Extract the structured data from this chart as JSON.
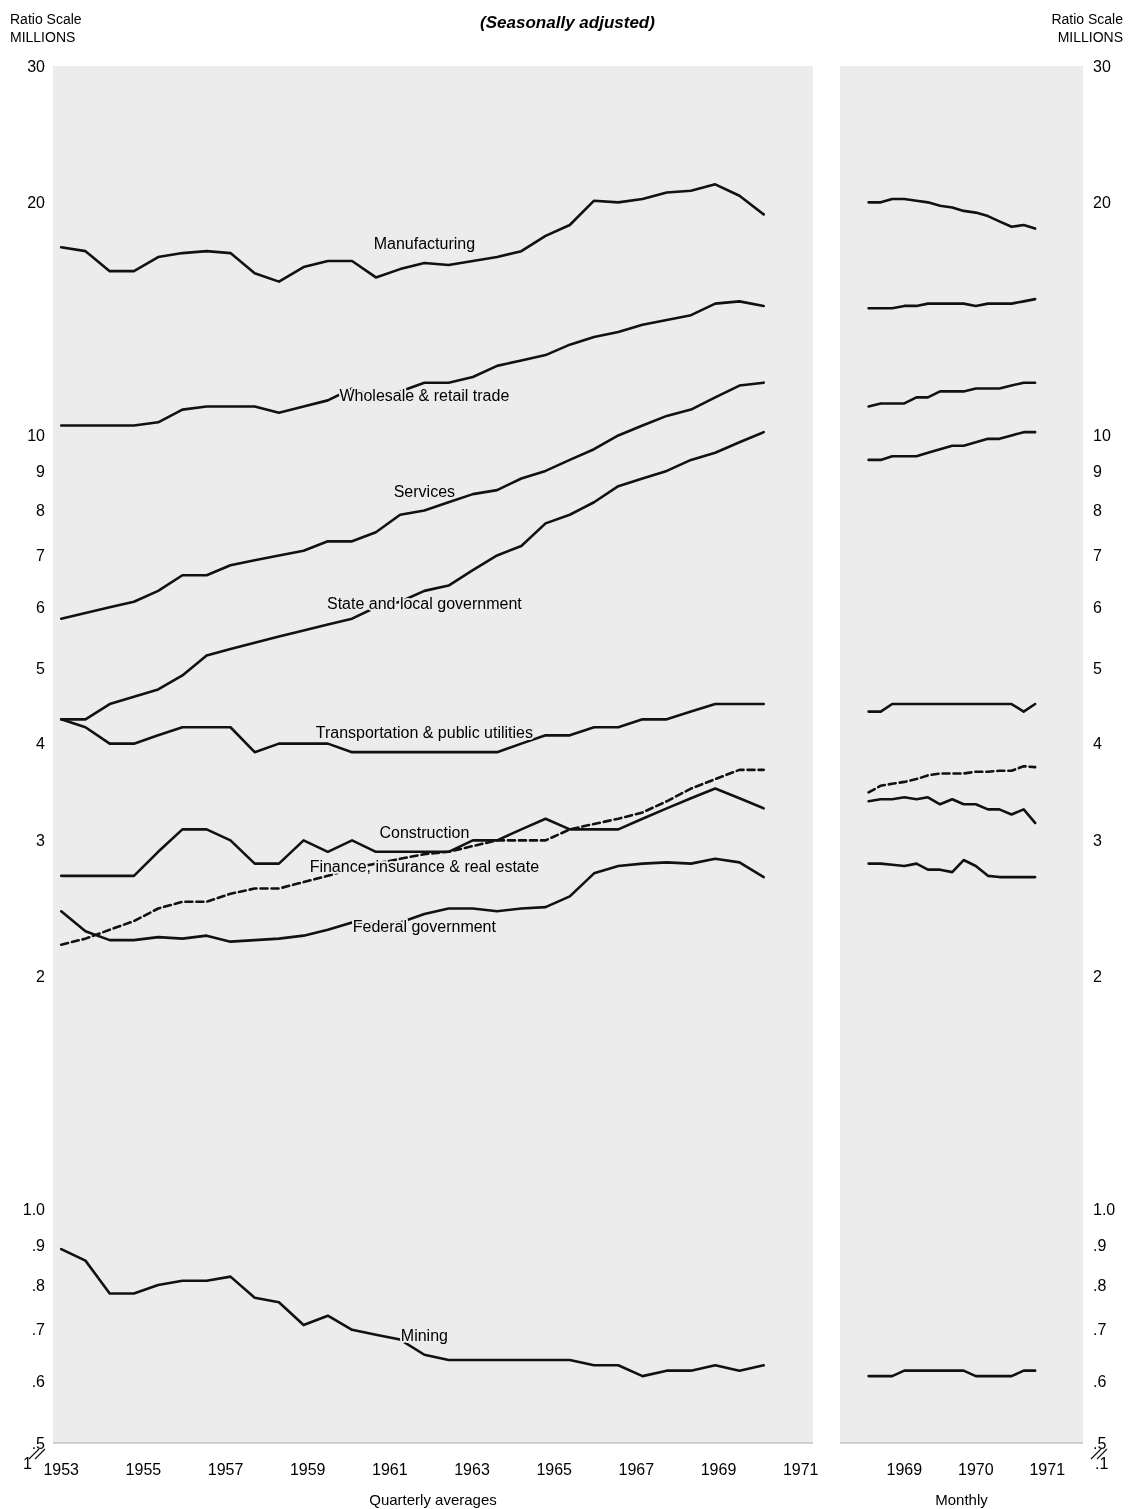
{
  "chart_data": [
    {
      "type": "line",
      "title": "(Seasonally adjusted)",
      "ylabel": "Ratio Scale\nMILLIONS",
      "xlabel": "Quarterly averages",
      "log": true,
      "xlim": [
        1952.8,
        1971.3
      ],
      "xticks": [
        1953,
        1955,
        1957,
        1959,
        1961,
        1963,
        1965,
        1967,
        1969,
        1971
      ],
      "ylim": [
        0.5,
        30
      ],
      "yticks": [
        30,
        20,
        10,
        9,
        8,
        7,
        6,
        5,
        4,
        3,
        2,
        {
          "value": 1,
          "label": "1.0"
        },
        {
          "value": 0.9,
          "label": ".9"
        },
        {
          "value": 0.8,
          "label": ".8"
        },
        {
          "value": 0.7,
          "label": ".7"
        },
        {
          "value": 0.6,
          "label": ".6"
        },
        {
          "value": 0.5,
          "label": ".5"
        }
      ],
      "x": [
        1953.0,
        1953.59,
        1954.18,
        1954.77,
        1955.36,
        1955.95,
        1956.54,
        1957.12,
        1957.71,
        1958.3,
        1958.9,
        1959.49,
        1960.08,
        1960.66,
        1961.25,
        1961.84,
        1962.43,
        1963.02,
        1963.61,
        1964.2,
        1964.79,
        1965.38,
        1965.97,
        1966.56,
        1967.15,
        1967.74,
        1968.33,
        1968.92,
        1969.51,
        1970.1
      ],
      "series": [
        {
          "name": "Manufacturing",
          "color": "#111111",
          "values": [
            17.5,
            17.3,
            16.3,
            16.3,
            17.0,
            17.2,
            17.3,
            17.2,
            16.2,
            15.8,
            16.5,
            16.8,
            16.8,
            16.0,
            16.4,
            16.7,
            16.6,
            16.8,
            17.0,
            17.3,
            18.1,
            18.7,
            20.1,
            20.0,
            20.2,
            20.6,
            20.7,
            21.1,
            20.4,
            19.3
          ]
        },
        {
          "name": "Wholesale & retail trade",
          "color": "#111111",
          "values": [
            10.3,
            10.3,
            10.3,
            10.3,
            10.4,
            10.8,
            10.9,
            10.9,
            10.9,
            10.7,
            10.9,
            11.1,
            11.5,
            11.2,
            11.4,
            11.7,
            11.7,
            11.9,
            12.3,
            12.5,
            12.7,
            13.1,
            13.4,
            13.6,
            13.9,
            14.1,
            14.3,
            14.8,
            14.9,
            14.7
          ]
        },
        {
          "name": "Services",
          "color": "#111111",
          "values": [
            5.8,
            5.9,
            6.0,
            6.1,
            6.3,
            6.6,
            6.6,
            6.8,
            6.9,
            7.0,
            7.1,
            7.3,
            7.3,
            7.5,
            7.9,
            8.0,
            8.2,
            8.4,
            8.5,
            8.8,
            9.0,
            9.3,
            9.6,
            10.0,
            10.3,
            10.6,
            10.8,
            11.2,
            11.6,
            11.7
          ]
        },
        {
          "name": "State and local government",
          "color": "#111111",
          "values": [
            4.3,
            4.3,
            4.5,
            4.6,
            4.7,
            4.9,
            5.2,
            5.3,
            5.4,
            5.5,
            5.6,
            5.7,
            5.8,
            6.0,
            6.1,
            6.3,
            6.4,
            6.7,
            7.0,
            7.2,
            7.7,
            7.9,
            8.2,
            8.6,
            8.8,
            9.0,
            9.3,
            9.5,
            9.8,
            10.1
          ]
        },
        {
          "name": "Transportation & public utilities",
          "color": "#111111",
          "values": [
            4.3,
            4.2,
            4.0,
            4.0,
            4.1,
            4.2,
            4.2,
            4.2,
            3.9,
            4.0,
            4.0,
            4.0,
            3.9,
            3.9,
            3.9,
            3.9,
            3.9,
            3.9,
            3.9,
            4.0,
            4.1,
            4.1,
            4.2,
            4.2,
            4.3,
            4.3,
            4.4,
            4.5,
            4.5,
            4.5
          ]
        },
        {
          "name": "Construction",
          "color": "#111111",
          "values": [
            2.7,
            2.7,
            2.7,
            2.7,
            2.9,
            3.1,
            3.1,
            3.0,
            2.8,
            2.8,
            3.0,
            2.9,
            3.0,
            2.9,
            2.9,
            2.9,
            2.9,
            3.0,
            3.0,
            3.1,
            3.2,
            3.1,
            3.1,
            3.1,
            3.2,
            3.3,
            3.4,
            3.5,
            3.4,
            3.3
          ]
        },
        {
          "name": "Finance, insurance & real estate",
          "color": "#111111",
          "line_style": "dashed",
          "values": [
            2.2,
            2.24,
            2.3,
            2.36,
            2.45,
            2.5,
            2.5,
            2.56,
            2.6,
            2.6,
            2.65,
            2.7,
            2.76,
            2.8,
            2.84,
            2.88,
            2.9,
            2.95,
            3.0,
            3.0,
            3.0,
            3.1,
            3.15,
            3.2,
            3.26,
            3.37,
            3.5,
            3.6,
            3.7,
            3.7
          ]
        },
        {
          "name": "Federal government",
          "color": "#111111",
          "values": [
            2.43,
            2.29,
            2.23,
            2.23,
            2.25,
            2.24,
            2.26,
            2.22,
            2.23,
            2.24,
            2.26,
            2.3,
            2.35,
            2.34,
            2.35,
            2.41,
            2.45,
            2.45,
            2.43,
            2.45,
            2.46,
            2.54,
            2.72,
            2.78,
            2.8,
            2.81,
            2.8,
            2.84,
            2.81,
            2.69
          ]
        },
        {
          "name": "Mining",
          "color": "#111111",
          "values": [
            0.89,
            0.86,
            0.78,
            0.78,
            0.8,
            0.81,
            0.81,
            0.82,
            0.77,
            0.76,
            0.71,
            0.73,
            0.7,
            0.69,
            0.68,
            0.65,
            0.64,
            0.64,
            0.64,
            0.64,
            0.64,
            0.64,
            0.63,
            0.63,
            0.61,
            0.62,
            0.62,
            0.63,
            0.62,
            0.63
          ]
        }
      ],
      "annotations": [
        "1"
      ]
    },
    {
      "type": "line",
      "ylabel": "Ratio Scale\nMILLIONS",
      "xlabel": "Monthly",
      "log": true,
      "xlim": [
        1968.6,
        1972.0
      ],
      "xticks": [
        {
          "value": 1969.5,
          "label": "1969"
        },
        {
          "value": 1970.5,
          "label": "1970"
        },
        {
          "value": 1971.5,
          "label": "1971"
        }
      ],
      "ylim": [
        0.5,
        30
      ],
      "yticks": [
        30,
        20,
        10,
        9,
        8,
        7,
        6,
        5,
        4,
        3,
        2,
        {
          "value": 1,
          "label": "1.0"
        },
        {
          "value": 0.9,
          "label": ".9"
        },
        {
          "value": 0.8,
          "label": ".8"
        },
        {
          "value": 0.7,
          "label": ".7"
        },
        {
          "value": 0.6,
          "label": ".6"
        },
        {
          "value": 0.5,
          "label": ".5"
        }
      ],
      "x": [
        1969.0,
        1969.17,
        1969.33,
        1969.5,
        1969.67,
        1969.83,
        1970.0,
        1970.17,
        1970.33,
        1970.5,
        1970.67,
        1970.83,
        1971.0,
        1971.17,
        1971.33
      ],
      "series": [
        {
          "color": "#111111",
          "values": [
            20.0,
            20.0,
            20.2,
            20.2,
            20.1,
            20.0,
            19.8,
            19.7,
            19.5,
            19.4,
            19.2,
            18.9,
            18.6,
            18.7,
            18.5
          ]
        },
        {
          "color": "#111111",
          "values": [
            14.6,
            14.6,
            14.6,
            14.7,
            14.7,
            14.8,
            14.8,
            14.8,
            14.8,
            14.7,
            14.8,
            14.8,
            14.8,
            14.9,
            15.0
          ]
        },
        {
          "color": "#111111",
          "values": [
            10.9,
            11.0,
            11.0,
            11.0,
            11.2,
            11.2,
            11.4,
            11.4,
            11.4,
            11.5,
            11.5,
            11.5,
            11.6,
            11.7,
            11.7
          ]
        },
        {
          "color": "#111111",
          "values": [
            9.3,
            9.3,
            9.4,
            9.4,
            9.4,
            9.5,
            9.6,
            9.7,
            9.7,
            9.8,
            9.9,
            9.9,
            10.0,
            10.1,
            10.1
          ]
        },
        {
          "color": "#111111",
          "values": [
            4.4,
            4.4,
            4.5,
            4.5,
            4.5,
            4.5,
            4.5,
            4.5,
            4.5,
            4.5,
            4.5,
            4.5,
            4.5,
            4.4,
            4.5
          ]
        },
        {
          "color": "#111111",
          "line_style": "dashed",
          "values": [
            3.46,
            3.53,
            3.55,
            3.57,
            3.6,
            3.64,
            3.66,
            3.66,
            3.66,
            3.68,
            3.68,
            3.69,
            3.69,
            3.74,
            3.73
          ]
        },
        {
          "color": "#111111",
          "values": [
            3.37,
            3.39,
            3.39,
            3.41,
            3.39,
            3.41,
            3.34,
            3.39,
            3.34,
            3.34,
            3.29,
            3.29,
            3.24,
            3.29,
            3.16
          ]
        },
        {
          "color": "#111111",
          "values": [
            2.8,
            2.8,
            2.79,
            2.78,
            2.8,
            2.75,
            2.75,
            2.73,
            2.83,
            2.78,
            2.7,
            2.69,
            2.69,
            2.69,
            2.69
          ]
        },
        {
          "color": "#111111",
          "values": [
            0.61,
            0.61,
            0.61,
            0.62,
            0.62,
            0.62,
            0.62,
            0.62,
            0.62,
            0.61,
            0.61,
            0.61,
            0.61,
            0.62,
            0.62
          ]
        }
      ],
      "annotations": [
        ".1"
      ]
    }
  ]
}
